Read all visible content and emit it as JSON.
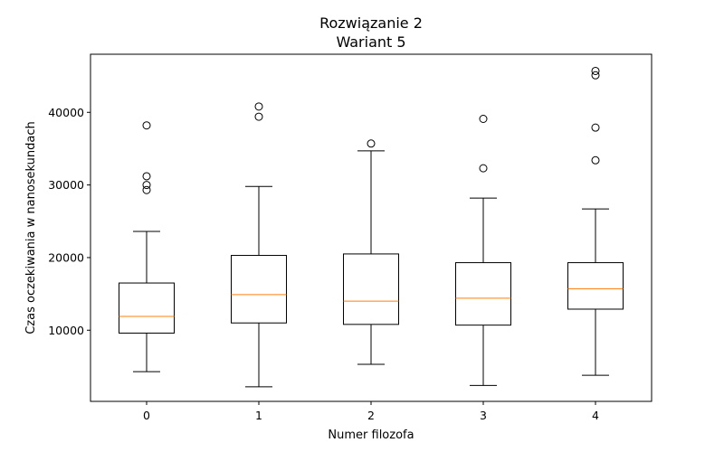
{
  "chart_data": {
    "type": "boxplot",
    "title": "Rozwiązanie 2",
    "subtitle": "Wariant 5",
    "xlabel": "Numer filozofa",
    "ylabel": "Czas oczekiwania w nanosekundach",
    "categories": [
      "0",
      "1",
      "2",
      "3",
      "4"
    ],
    "y_ticks": [
      10000,
      20000,
      30000,
      40000
    ],
    "y_tick_labels": [
      "10000",
      "20000",
      "30000",
      "40000"
    ],
    "ylim": [
      200,
      48000
    ],
    "grid": false,
    "colors": {
      "box": "#000000",
      "median": "#ff7f0e",
      "flier": "#000000"
    },
    "boxes": [
      {
        "category": "0",
        "whisker_low": 4300,
        "q1": 9600,
        "median": 11900,
        "q3": 16500,
        "whisker_high": 23600,
        "outliers": [
          29300,
          30000,
          31200,
          38200
        ]
      },
      {
        "category": "1",
        "whisker_low": 2200,
        "q1": 11000,
        "median": 14900,
        "q3": 20300,
        "whisker_high": 29800,
        "outliers": [
          39400,
          40800
        ]
      },
      {
        "category": "2",
        "whisker_low": 5300,
        "q1": 10800,
        "median": 14000,
        "q3": 20500,
        "whisker_high": 34700,
        "outliers": [
          35700
        ]
      },
      {
        "category": "3",
        "whisker_low": 2400,
        "q1": 10700,
        "median": 14400,
        "q3": 19300,
        "whisker_high": 28200,
        "outliers": [
          32300,
          39100
        ]
      },
      {
        "category": "4",
        "whisker_low": 3800,
        "q1": 12900,
        "median": 15700,
        "q3": 19300,
        "whisker_high": 26700,
        "outliers": [
          33400,
          37900,
          45100,
          45700
        ]
      }
    ]
  }
}
